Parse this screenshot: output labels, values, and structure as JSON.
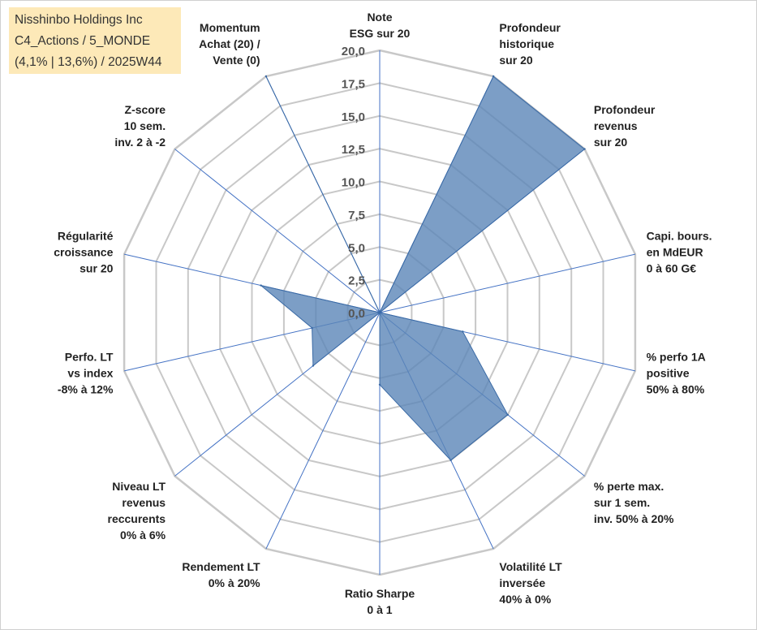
{
  "header": {
    "lines": [
      "Nisshinbo Holdings Inc",
      "C4_Actions / 5_MONDE",
      "(4,1% | 13,6%) / 2025W44"
    ]
  },
  "colors": {
    "fill": "#5b86b8",
    "stroke": "#3a6aa5",
    "grid": "#c8c8c8",
    "spoke": "#4472c4",
    "header_bg": "#fde9b8"
  },
  "chart_data": {
    "type": "radar",
    "title": "Nisshinbo Holdings Inc",
    "rmin": 0,
    "rmax": 20,
    "tick_labels": [
      "0,0",
      "2,5",
      "5,0",
      "7,5",
      "10,0",
      "12,5",
      "15,0",
      "17,5",
      "20,0"
    ],
    "axes": [
      {
        "lines": [
          "Note",
          "ESG sur 20"
        ]
      },
      {
        "lines": [
          "Profondeur",
          "historique",
          "sur 20"
        ]
      },
      {
        "lines": [
          "Profondeur",
          "revenus",
          "sur 20"
        ]
      },
      {
        "lines": [
          "Capi. bours.",
          "en MdEUR",
          "0 à 60 G€"
        ]
      },
      {
        "lines": [
          "% perfo 1A",
          "positive",
          "50% à 80%"
        ]
      },
      {
        "lines": [
          "% perte max.",
          "sur 1 sem.",
          "inv. 50% à 20%"
        ]
      },
      {
        "lines": [
          "Volatilité LT",
          "inversée",
          "40% à 0%"
        ]
      },
      {
        "lines": [
          "Ratio Sharpe",
          "0 à 1"
        ]
      },
      {
        "lines": [
          "Rendement LT",
          "0% à 20%"
        ]
      },
      {
        "lines": [
          "Niveau LT",
          "revenus",
          "reccurents",
          "0% à 6%"
        ]
      },
      {
        "lines": [
          "Perfo. LT",
          "vs index",
          "-8% à 12%"
        ]
      },
      {
        "lines": [
          "Régularité",
          "croissance",
          "sur 20"
        ]
      },
      {
        "lines": [
          "Z-score",
          "10 sem.",
          "inv. 2 à -2"
        ]
      },
      {
        "lines": [
          "Momentum",
          "Achat (20) /",
          "Vente (0)"
        ]
      }
    ],
    "series": [
      {
        "name": "Nisshinbo Holdings Inc",
        "values": [
          0,
          20,
          20,
          0,
          6.5,
          12.5,
          12.5,
          5.5,
          0,
          6.5,
          5.3,
          9.3,
          0,
          20
        ]
      }
    ]
  }
}
